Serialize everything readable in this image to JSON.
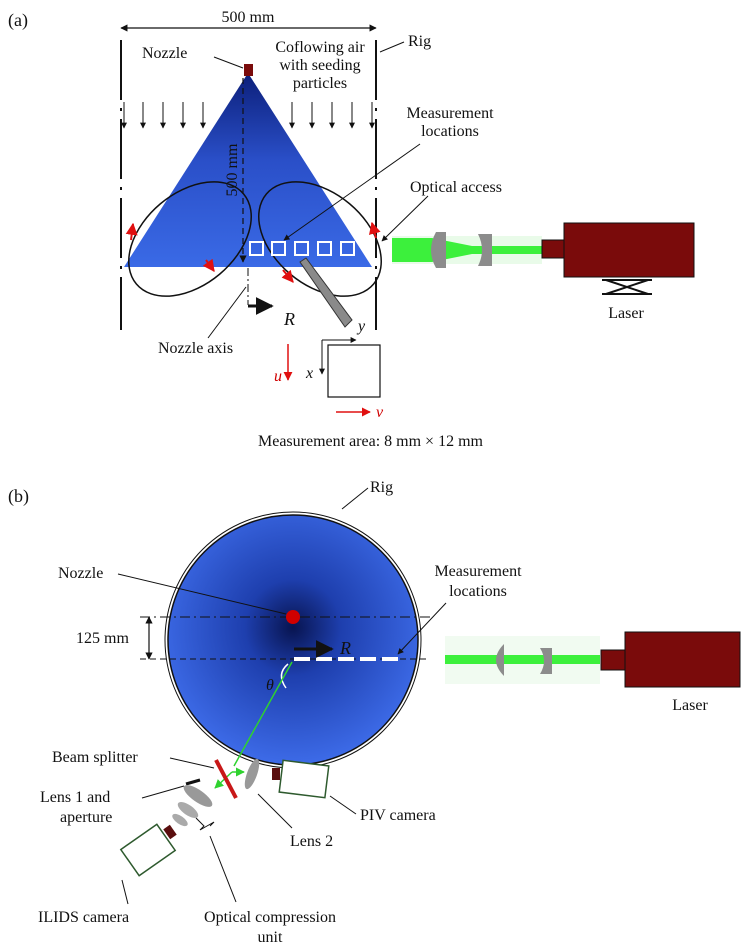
{
  "panel_a": {
    "label": "(a)",
    "width_dim": "500 mm",
    "rig": "Rig",
    "nozzle": "Nozzle",
    "coflow_1": "Coflowing air",
    "coflow_2": "with seeding",
    "coflow_3": "particles",
    "meas_1": "Measurement",
    "meas_2": "locations",
    "optical_access": "Optical access",
    "height_dim": "500 mm",
    "r_label": "R",
    "nozzle_axis": "Nozzle axis",
    "laser": "Laser",
    "y_axis": "y",
    "x_axis": "x",
    "u_label": "u",
    "v_label": "v",
    "measurement_area": "Measurement area: 8 mm × 12 mm"
  },
  "panel_b": {
    "label": "(b)",
    "rig": "Rig",
    "nozzle": "Nozzle",
    "meas_1": "Measurement",
    "meas_2": "locations",
    "offset_dim": "125 mm",
    "r_label": "R",
    "theta": "θ",
    "laser": "Laser",
    "beam_splitter": "Beam splitter",
    "lens1_1": "Lens 1 and",
    "lens1_2": "aperture",
    "lens2": "Lens 2",
    "piv_camera": "PIV camera",
    "ilids_camera": "ILIDS camera",
    "ocu_1": "Optical compression",
    "ocu_2": "unit"
  },
  "colors": {
    "spray_blue": "#3a64d8",
    "laser_green": "#3cf03c",
    "laser_body": "#7a0b0b",
    "flow_red": "#e01010"
  }
}
